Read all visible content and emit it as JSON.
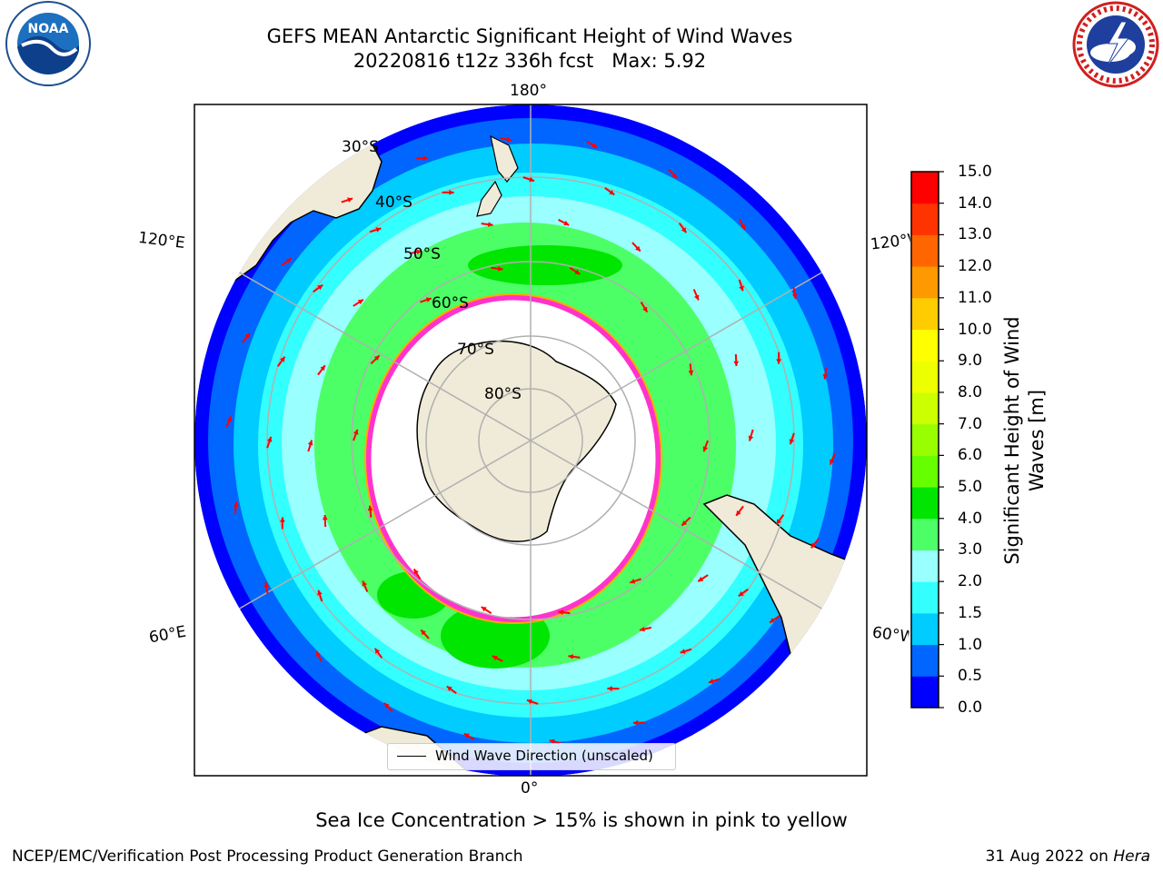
{
  "header": {
    "title_line1": "GEFS MEAN Antarctic Significant Height of Wind Waves",
    "title_line2": "20220816 t12z 336h fcst   Max: 5.92"
  },
  "logos": {
    "left": {
      "icon": "noaa-logo",
      "text": "NOAA",
      "colors": {
        "sky": "#1d6fbf",
        "deep": "#0e3f8a",
        "text": "#ffffff"
      }
    },
    "right": {
      "icon": "national-weather-service-logo",
      "text": "NATIONAL WEATHER SERVICE",
      "colors": {
        "ring": "#d11f1f",
        "inner": "#1e3f9e",
        "bolt": "#ffffff"
      }
    }
  },
  "map": {
    "projection": "south-polar-stereographic",
    "longitude_labels": {
      "top": "180°",
      "bottom": "0°",
      "upper_left": "120°E",
      "lower_left": "60°E",
      "upper_right": "120°W",
      "lower_right": "60°W"
    },
    "latitude_labels": [
      "30°S",
      "40°S",
      "50°S",
      "60°S",
      "70°S",
      "80°S"
    ],
    "land_color": "#efebd8",
    "ice_edge_colors": [
      "#ff33cc",
      "#ffaa00"
    ],
    "arrow_color": "#ff0000",
    "grid_color": "#b0b0b0",
    "legend": {
      "label": "Wind Wave Direction (unscaled)"
    }
  },
  "colorbar": {
    "label_line1": "Significant Height of Wind",
    "label_line2": "Waves [m]",
    "ticks": [
      "0.0",
      "0.5",
      "1.0",
      "1.5",
      "2.0",
      "3.0",
      "4.0",
      "5.0",
      "6.0",
      "7.0",
      "8.0",
      "9.0",
      "10.0",
      "11.0",
      "12.0",
      "13.0",
      "14.0",
      "15.0"
    ],
    "colors": [
      "#0000ff",
      "#0066ff",
      "#00ccff",
      "#33ffff",
      "#99ffff",
      "#4dff66",
      "#00e600",
      "#66ff00",
      "#99ff00",
      "#ccff00",
      "#eeff00",
      "#ffff00",
      "#ffcc00",
      "#ff9900",
      "#ff6600",
      "#ff3300",
      "#ff0000"
    ]
  },
  "footnote": "Sea Ice Concentration > 15% is shown in pink to yellow",
  "footer": {
    "left": "NCEP/EMC/Verification Post Processing Product Generation Branch",
    "right_prefix": "31 Aug 2022 on ",
    "right_host": "Hera"
  }
}
